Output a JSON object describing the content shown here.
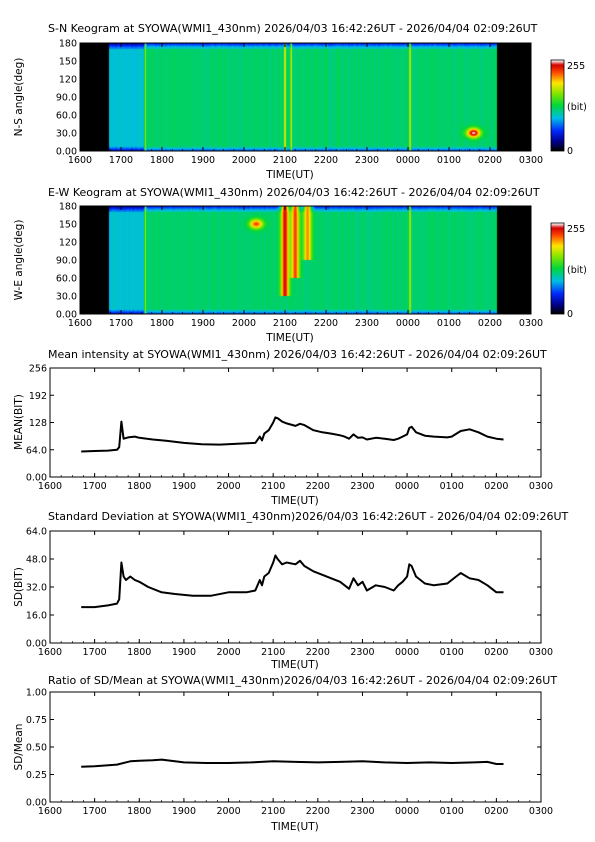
{
  "kgSN": {
    "title": "S-N Keogram at SYOWA(WMI1_430nm)    2026/04/03 16:42:26UT - 2026/04/04 02:09:26UT",
    "ylabel": "N-S angle(deg)",
    "xlabel": "TIME(UT)",
    "yticks": [
      "0.00",
      "30.0",
      "60.0",
      "90.0",
      "120",
      "150",
      "180"
    ],
    "xticks": [
      "1600",
      "1700",
      "1800",
      "1900",
      "2000",
      "2100",
      "2200",
      "2300",
      "0000",
      "0100",
      "0200",
      "0300"
    ],
    "colorbar": {
      "max": "255",
      "unit": "(bit)",
      "min": "0"
    }
  },
  "kgEW": {
    "title": "E-W Keogram at SYOWA(WMI1_430nm)    2026/04/03 16:42:26UT - 2026/04/04 02:09:26UT",
    "ylabel": "W-E angle(deg)",
    "xlabel": "TIME(UT)",
    "yticks": [
      "0.00",
      "30.0",
      "60.0",
      "90.0",
      "120",
      "150",
      "180"
    ],
    "xticks": [
      "1600",
      "1700",
      "1800",
      "1900",
      "2000",
      "2100",
      "2200",
      "2300",
      "0000",
      "0100",
      "0200",
      "0300"
    ],
    "colorbar": {
      "max": "255",
      "unit": "(bit)",
      "min": "0"
    }
  },
  "mean": {
    "title": "Mean intensity at SYOWA(WMI1_430nm)    2026/04/03 16:42:26UT - 2026/04/04 02:09:26UT",
    "ylabel": "MEAN(BIT)",
    "xlabel": "TIME(UT)",
    "yticks": [
      "0.00",
      "64.0",
      "128",
      "192",
      "256"
    ],
    "xticks": [
      "1600",
      "1700",
      "1800",
      "1900",
      "2000",
      "2100",
      "2200",
      "2300",
      "0000",
      "0100",
      "0200",
      "0300"
    ]
  },
  "sd": {
    "title": "Standard Deviation at SYOWA(WMI1_430nm)2026/04/03 16:42:26UT - 2026/04/04 02:09:26UT",
    "ylabel": "SD(BIT)",
    "xlabel": "TIME(UT)",
    "yticks": [
      "0.00",
      "16.0",
      "32.0",
      "48.0",
      "64.0"
    ],
    "xticks": [
      "1600",
      "1700",
      "1800",
      "1900",
      "2000",
      "2100",
      "2200",
      "2300",
      "0000",
      "0100",
      "0200",
      "0300"
    ]
  },
  "ratio": {
    "title": "Ratio of SD/Mean at SYOWA(WMI1_430nm)2026/04/03 16:42:26UT - 2026/04/04 02:09:26UT",
    "ylabel": "SD/Mean",
    "xlabel": "TIME(UT)",
    "yticks": [
      "0.00",
      "0.25",
      "0.50",
      "0.75",
      "1.00"
    ],
    "xticks": [
      "1600",
      "1700",
      "1800",
      "1900",
      "2000",
      "2100",
      "2200",
      "2300",
      "0000",
      "0100",
      "0200",
      "0300"
    ]
  },
  "chart_data": [
    {
      "type": "heatmap",
      "x_range": [
        16.0,
        27.0
      ],
      "y_range": [
        0,
        180
      ],
      "data_x_range": [
        16.7,
        26.16
      ],
      "value_range": [
        0,
        255
      ],
      "colormap": "rainbow (black-blue-cyan-green-yellow-red-white)",
      "features": [
        {
          "x": 17.6,
          "value": 175,
          "extent": "full"
        },
        {
          "x": 21.0,
          "value": 235,
          "extent": "full"
        },
        {
          "x": 21.15,
          "value": 205,
          "extent": "full"
        },
        {
          "x": 24.05,
          "value": 215,
          "extent": "full"
        },
        {
          "x": 25.6,
          "y": 30,
          "value": 255
        }
      ]
    },
    {
      "type": "heatmap",
      "x_range": [
        16.0,
        27.0
      ],
      "y_range": [
        0,
        180
      ],
      "data_x_range": [
        16.7,
        26.16
      ],
      "value_range": [
        0,
        255
      ],
      "colormap": "rainbow (black-blue-cyan-green-yellow-red-white)",
      "features": [
        {
          "x": 17.6,
          "value": 175,
          "extent": "full"
        },
        {
          "x": 20.3,
          "y": 150,
          "value": 225
        },
        {
          "x": 21.0,
          "y_span": [
            30,
            180
          ],
          "value": 240
        },
        {
          "x": 21.25,
          "y_span": [
            60,
            180
          ],
          "value": 225
        },
        {
          "x": 21.55,
          "y_span": [
            90,
            180
          ],
          "value": 210
        },
        {
          "x": 24.05,
          "value": 210,
          "extent": "full"
        }
      ]
    },
    {
      "type": "line",
      "ylim": [
        0,
        256
      ],
      "xlim": [
        16.0,
        27.0
      ],
      "x": [
        16.7,
        17.0,
        17.3,
        17.5,
        17.55,
        17.6,
        17.65,
        17.75,
        17.9,
        18.0,
        18.3,
        18.6,
        19.0,
        19.4,
        19.8,
        20.2,
        20.6,
        20.7,
        20.75,
        20.8,
        20.9,
        21.0,
        21.05,
        21.1,
        21.2,
        21.3,
        21.5,
        21.6,
        21.7,
        21.9,
        22.1,
        22.3,
        22.5,
        22.6,
        22.7,
        22.8,
        22.9,
        23.0,
        23.1,
        23.3,
        23.5,
        23.7,
        23.8,
        23.9,
        24.0,
        24.05,
        24.1,
        24.2,
        24.4,
        24.6,
        24.9,
        25.0,
        25.2,
        25.4,
        25.6,
        25.8,
        26.0,
        26.16
      ],
      "y": [
        60,
        61,
        62,
        64,
        70,
        130,
        90,
        93,
        95,
        92,
        88,
        85,
        80,
        77,
        76,
        78,
        80,
        95,
        86,
        102,
        110,
        128,
        140,
        138,
        130,
        126,
        120,
        125,
        122,
        110,
        105,
        102,
        98,
        95,
        90,
        100,
        92,
        93,
        88,
        92,
        90,
        87,
        90,
        95,
        100,
        115,
        118,
        105,
        97,
        95,
        93,
        95,
        108,
        112,
        105,
        95,
        90,
        88
      ]
    },
    {
      "type": "line",
      "ylim": [
        0,
        64
      ],
      "xlim": [
        16.0,
        27.0
      ],
      "x": [
        16.7,
        17.0,
        17.3,
        17.5,
        17.55,
        17.6,
        17.65,
        17.7,
        17.8,
        17.9,
        18.0,
        18.2,
        18.5,
        18.8,
        19.2,
        19.6,
        20.0,
        20.4,
        20.6,
        20.7,
        20.75,
        20.8,
        20.9,
        21.0,
        21.05,
        21.1,
        21.2,
        21.3,
        21.5,
        21.6,
        21.7,
        21.9,
        22.1,
        22.3,
        22.5,
        22.6,
        22.7,
        22.8,
        22.9,
        23.0,
        23.1,
        23.3,
        23.5,
        23.7,
        23.8,
        23.9,
        24.0,
        24.05,
        24.1,
        24.2,
        24.4,
        24.6,
        24.9,
        25.0,
        25.2,
        25.4,
        25.6,
        25.8,
        26.0,
        26.16
      ],
      "y": [
        20.5,
        20.5,
        21.5,
        22.5,
        25,
        46,
        38,
        36,
        38,
        36,
        35,
        32,
        29,
        28,
        27,
        27,
        29,
        29,
        30,
        36,
        33,
        38,
        40,
        46,
        50,
        48,
        45,
        46,
        45,
        47,
        44,
        41,
        39,
        37,
        35,
        33,
        31,
        37,
        33,
        35,
        30,
        33,
        32,
        30,
        33,
        35,
        38,
        45,
        44,
        38,
        34,
        33,
        34,
        36,
        40,
        37,
        36,
        33,
        29,
        29
      ]
    },
    {
      "type": "line",
      "ylim": [
        0,
        1.0
      ],
      "xlim": [
        16.0,
        27.0
      ],
      "x": [
        16.7,
        17.0,
        17.5,
        17.8,
        18.0,
        18.3,
        18.5,
        18.8,
        19.0,
        19.5,
        20.0,
        20.5,
        21.0,
        21.5,
        22.0,
        22.5,
        23.0,
        23.5,
        24.0,
        24.5,
        25.0,
        25.5,
        25.8,
        26.0,
        26.16
      ],
      "y": [
        0.32,
        0.325,
        0.34,
        0.37,
        0.375,
        0.38,
        0.385,
        0.37,
        0.36,
        0.355,
        0.355,
        0.36,
        0.37,
        0.365,
        0.36,
        0.365,
        0.37,
        0.36,
        0.355,
        0.36,
        0.355,
        0.36,
        0.365,
        0.345,
        0.345
      ]
    }
  ]
}
